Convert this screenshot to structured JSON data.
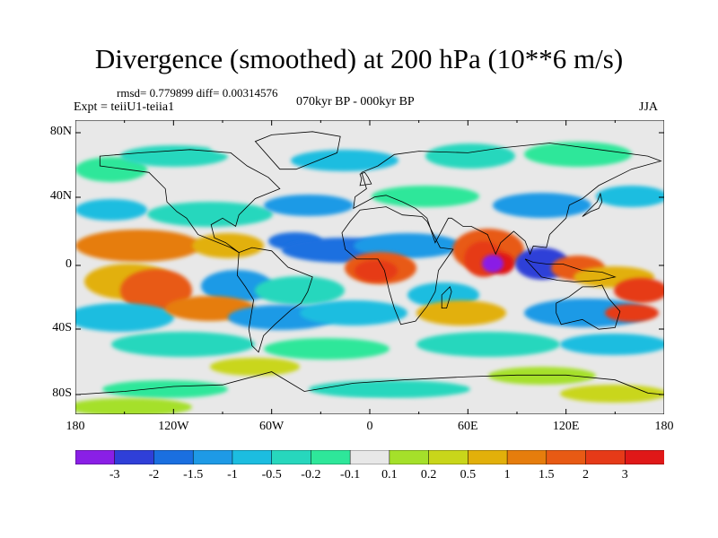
{
  "header": {
    "title": "Divergence (smoothed) at 200 hPa (10**6 m/s)",
    "stats": "rmsd= 0.779899 diff= 0.00314576",
    "experiment": "Expt = teiiU1-teiia1",
    "period": "070kyr BP - 000kyr BP",
    "season": "JJA"
  },
  "axes": {
    "y_ticks": [
      "80N",
      "40N",
      "0",
      "40S",
      "80S"
    ],
    "x_ticks": [
      "180",
      "120W",
      "60W",
      "0",
      "60E",
      "120E",
      "180"
    ]
  },
  "colorbar": {
    "labels": [
      "-3",
      "-2",
      "-1.5",
      "-1",
      "-0.5",
      "-0.2",
      "-0.1",
      "0.1",
      "0.2",
      "0.5",
      "1",
      "1.5",
      "2",
      "3"
    ],
    "colors": [
      "#8a1fe6",
      "#2f3fd8",
      "#1a6fe0",
      "#1e9ae6",
      "#1cbde0",
      "#27d7bd",
      "#2ee79a",
      "#e8e8e8",
      "#a5e02a",
      "#c9d61a",
      "#e2b00a",
      "#e67d0c",
      "#e85a14",
      "#e63a18",
      "#e01818"
    ]
  },
  "map": {
    "projection": "cylindrical-equidistant",
    "lon_range": [
      -180,
      180
    ],
    "lat_range": [
      -90,
      90
    ],
    "field": "divergence-anomaly"
  }
}
